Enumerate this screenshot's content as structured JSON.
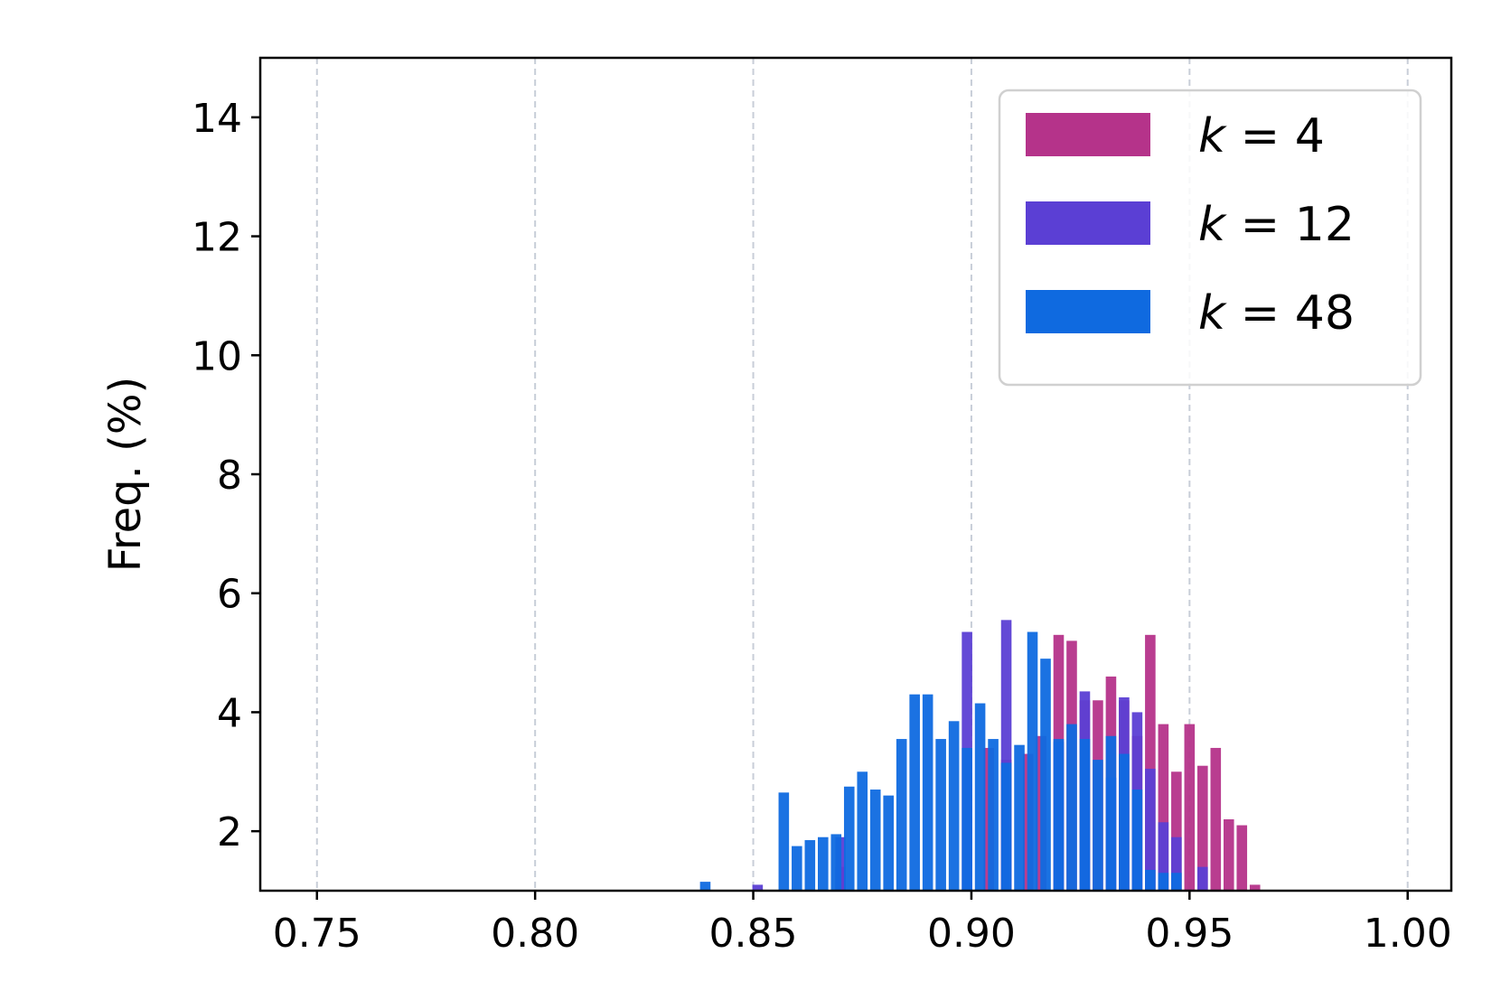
{
  "chart_data": {
    "type": "bar",
    "title": "",
    "xlabel": "",
    "ylabel": "Freq. (%)",
    "xlim": [
      0.737,
      1.01
    ],
    "ylim": [
      1.0,
      15.0
    ],
    "xticks": [
      0.75,
      0.8,
      0.85,
      0.9,
      0.95,
      1.0
    ],
    "xtick_labels": [
      "0.75",
      "0.80",
      "0.85",
      "0.90",
      "0.95",
      "1.00"
    ],
    "yticks": [
      2,
      4,
      6,
      8,
      10,
      12,
      14
    ],
    "ytick_labels": [
      "2",
      "4",
      "6",
      "8",
      "10",
      "12",
      "14"
    ],
    "grid": "x-dashed",
    "legend_position": "top-right",
    "bar_width": 0.0024,
    "series": [
      {
        "name": "k = 4",
        "legend_var": "k",
        "legend_value": "4",
        "color": "#b5338a",
        "x": [
          0.87,
          0.904,
          0.908,
          0.913,
          0.916,
          0.92,
          0.923,
          0.926,
          0.929,
          0.932,
          0.935,
          0.938,
          0.941,
          0.944,
          0.947,
          0.95,
          0.953,
          0.956,
          0.959,
          0.962,
          0.965
        ],
        "values": [
          1.4,
          3.4,
          3.2,
          3.3,
          3.6,
          5.3,
          5.2,
          4.2,
          4.2,
          4.6,
          4.2,
          3.6,
          5.3,
          3.8,
          3.0,
          3.8,
          3.1,
          3.4,
          2.2,
          2.1,
          1.1
        ]
      },
      {
        "name": "k = 12",
        "legend_var": "k",
        "legend_value": "12",
        "color": "#5b3fd4",
        "x": [
          0.851,
          0.87,
          0.899,
          0.908,
          0.92,
          0.926,
          0.932,
          0.935,
          0.938,
          0.941,
          0.944,
          0.947,
          0.953
        ],
        "values": [
          1.1,
          1.9,
          5.35,
          5.55,
          3.5,
          4.35,
          2.9,
          4.25,
          4.0,
          3.05,
          2.15,
          1.9,
          1.4
        ]
      },
      {
        "name": "k = 48",
        "legend_var": "k",
        "legend_value": "48",
        "color": "#0f6ae0",
        "x": [
          0.839,
          0.857,
          0.86,
          0.863,
          0.866,
          0.869,
          0.872,
          0.875,
          0.878,
          0.881,
          0.884,
          0.887,
          0.89,
          0.893,
          0.896,
          0.899,
          0.902,
          0.905,
          0.908,
          0.911,
          0.914,
          0.917,
          0.92,
          0.923,
          0.926,
          0.929,
          0.932,
          0.935,
          0.938,
          0.941,
          0.944,
          0.947
        ],
        "values": [
          1.15,
          2.65,
          1.75,
          1.85,
          1.9,
          1.95,
          2.75,
          3.0,
          2.7,
          2.6,
          3.55,
          4.3,
          4.3,
          3.55,
          3.85,
          3.4,
          4.15,
          3.55,
          3.15,
          3.45,
          5.35,
          4.9,
          3.55,
          3.8,
          3.55,
          3.2,
          3.6,
          3.3,
          2.7,
          1.35,
          1.3,
          1.3
        ]
      }
    ]
  }
}
